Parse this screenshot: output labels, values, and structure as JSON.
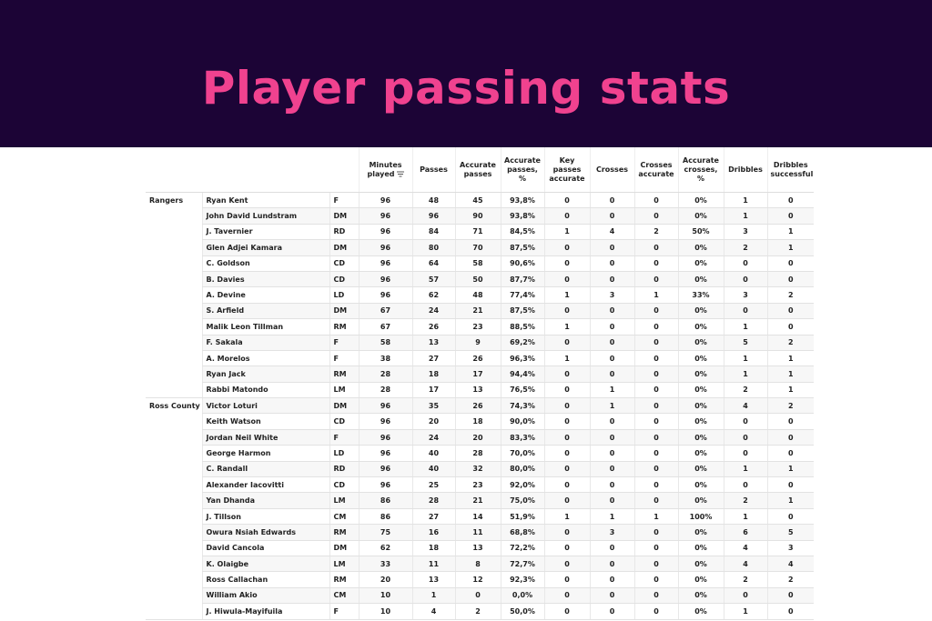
{
  "title": "Player passing stats",
  "table": {
    "header": [
      "Minutes played",
      "Passes",
      "Accurate passes",
      "Accurate passes, %",
      "Key passes accurate",
      "Crosses",
      "Crosses accurate",
      "Accurate crosses, %",
      "Dribbles",
      "Dribbles successful"
    ],
    "groups": [
      {
        "team": "Rangers",
        "rows": [
          [
            "Ryan Kent",
            "F",
            96,
            48,
            45,
            "93,8%",
            0,
            0,
            0,
            "0%",
            1,
            0
          ],
          [
            "John David Lundstram",
            "DM",
            96,
            96,
            90,
            "93,8%",
            0,
            0,
            0,
            "0%",
            1,
            0
          ],
          [
            "J. Tavernier",
            "RD",
            96,
            84,
            71,
            "84,5%",
            1,
            4,
            2,
            "50%",
            3,
            1
          ],
          [
            "Glen Adjei Kamara",
            "DM",
            96,
            80,
            70,
            "87,5%",
            0,
            0,
            0,
            "0%",
            2,
            1
          ],
          [
            "C. Goldson",
            "CD",
            96,
            64,
            58,
            "90,6%",
            0,
            0,
            0,
            "0%",
            0,
            0
          ],
          [
            "B. Davies",
            "CD",
            96,
            57,
            50,
            "87,7%",
            0,
            0,
            0,
            "0%",
            0,
            0
          ],
          [
            "A. Devine",
            "LD",
            96,
            62,
            48,
            "77,4%",
            1,
            3,
            1,
            "33%",
            3,
            2
          ],
          [
            "S. Arfield",
            "DM",
            67,
            24,
            21,
            "87,5%",
            0,
            0,
            0,
            "0%",
            0,
            0
          ],
          [
            "Malik Leon Tillman",
            "RM",
            67,
            26,
            23,
            "88,5%",
            1,
            0,
            0,
            "0%",
            1,
            0
          ],
          [
            "F. Sakala",
            "F",
            58,
            13,
            9,
            "69,2%",
            0,
            0,
            0,
            "0%",
            5,
            2
          ],
          [
            "A. Morelos",
            "F",
            38,
            27,
            26,
            "96,3%",
            1,
            0,
            0,
            "0%",
            1,
            1
          ],
          [
            "Ryan Jack",
            "RM",
            28,
            18,
            17,
            "94,4%",
            0,
            0,
            0,
            "0%",
            1,
            1
          ],
          [
            "Rabbi Matondo",
            "LM",
            28,
            17,
            13,
            "76,5%",
            0,
            1,
            0,
            "0%",
            2,
            1
          ]
        ]
      },
      {
        "team": "Ross County",
        "rows": [
          [
            "Victor Loturi",
            "DM",
            96,
            35,
            26,
            "74,3%",
            0,
            1,
            0,
            "0%",
            4,
            2
          ],
          [
            "Keith Watson",
            "CD",
            96,
            20,
            18,
            "90,0%",
            0,
            0,
            0,
            "0%",
            0,
            0
          ],
          [
            "Jordan Neil White",
            "F",
            96,
            24,
            20,
            "83,3%",
            0,
            0,
            0,
            "0%",
            0,
            0
          ],
          [
            "George Harmon",
            "LD",
            96,
            40,
            28,
            "70,0%",
            0,
            0,
            0,
            "0%",
            0,
            0
          ],
          [
            "C. Randall",
            "RD",
            96,
            40,
            32,
            "80,0%",
            0,
            0,
            0,
            "0%",
            1,
            1
          ],
          [
            "Alexander Iacovitti",
            "CD",
            96,
            25,
            23,
            "92,0%",
            0,
            0,
            0,
            "0%",
            0,
            0
          ],
          [
            "Yan Dhanda",
            "LM",
            86,
            28,
            21,
            "75,0%",
            0,
            0,
            0,
            "0%",
            2,
            1
          ],
          [
            "J. Tillson",
            "CM",
            86,
            27,
            14,
            "51,9%",
            1,
            1,
            1,
            "100%",
            1,
            0
          ],
          [
            "Owura Nsiah Edwards",
            "RM",
            75,
            16,
            11,
            "68,8%",
            0,
            3,
            0,
            "0%",
            6,
            5
          ],
          [
            "David Cancola",
            "DM",
            62,
            18,
            13,
            "72,2%",
            0,
            0,
            0,
            "0%",
            4,
            3
          ],
          [
            "K. Olaigbe",
            "LM",
            33,
            11,
            8,
            "72,7%",
            0,
            0,
            0,
            "0%",
            4,
            4
          ],
          [
            "Ross Callachan",
            "RM",
            20,
            13,
            12,
            "92,3%",
            0,
            0,
            0,
            "0%",
            2,
            2
          ],
          [
            "William Akio",
            "CM",
            10,
            1,
            0,
            "0,0%",
            0,
            0,
            0,
            "0%",
            0,
            0
          ],
          [
            "J. Hiwula-Mayifuila",
            "F",
            10,
            4,
            2,
            "50,0%",
            0,
            0,
            0,
            "0%",
            1,
            0
          ]
        ]
      }
    ]
  }
}
